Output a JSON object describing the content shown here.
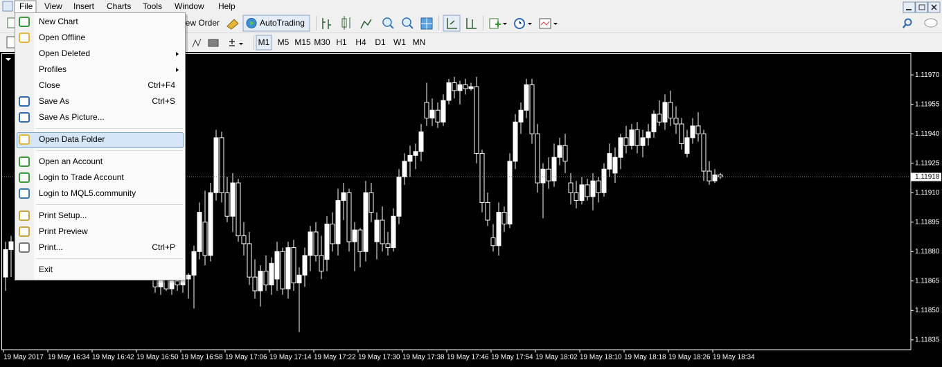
{
  "menu_bar": [
    "File",
    "View",
    "Insert",
    "Charts",
    "Tools",
    "Window",
    "Help"
  ],
  "toolbar": {
    "new_order": "New Order",
    "auto_trading": "AutoTrading",
    "timeframes": [
      "M1",
      "M5",
      "M15",
      "M30",
      "H1",
      "H4",
      "D1",
      "W1",
      "MN"
    ]
  },
  "file_menu": {
    "groups": [
      [
        {
          "label": "New Chart"
        },
        {
          "label": "Open Offline"
        },
        {
          "label": "Open Deleted",
          "submenu": true
        },
        {
          "label": "Profiles",
          "submenu": true
        },
        {
          "label": "Close",
          "shortcut": "Ctrl+F4"
        },
        {
          "label": "Save As",
          "shortcut": "Ctrl+S"
        },
        {
          "label": "Save As Picture..."
        }
      ],
      [
        {
          "label": "Open Data Folder",
          "highlighted": true
        }
      ],
      [
        {
          "label": "Open an Account"
        },
        {
          "label": "Login to Trade Account"
        },
        {
          "label": "Login to MQL5.community"
        }
      ],
      [
        {
          "label": "Print Setup..."
        },
        {
          "label": "Print Preview"
        },
        {
          "label": "Print...",
          "shortcut": "Ctrl+P"
        }
      ],
      [
        {
          "label": "Exit"
        }
      ]
    ]
  },
  "chart_data": {
    "type": "candlestick",
    "x": [
      "19 May 2017",
      null,
      null,
      null,
      null,
      null,
      null,
      null,
      "19 May 16:34",
      null,
      null,
      null,
      null,
      null,
      null,
      null,
      "19 May 16:42",
      null,
      null,
      null,
      null,
      null,
      null,
      null,
      "19 May 16:50",
      null,
      null,
      null,
      null,
      null,
      null,
      null,
      "19 May 16:58",
      null,
      null,
      null,
      null,
      null,
      null,
      null,
      "19 May 17:06",
      null,
      null,
      null,
      null,
      null,
      null,
      null,
      "19 May 17:14",
      null,
      null,
      null,
      null,
      null,
      null,
      null,
      "19 May 17:22",
      null,
      null,
      null,
      null,
      null,
      null,
      null,
      "19 May 17:30",
      null,
      null,
      null,
      null,
      null,
      null,
      null,
      "19 May 17:38",
      null,
      null,
      null,
      null,
      null,
      null,
      null,
      "19 May 17:46",
      null,
      null,
      null,
      null,
      null,
      null,
      null,
      "19 May 17:54",
      null,
      null,
      null,
      null,
      null,
      null,
      null,
      "19 May 18:02",
      null,
      null,
      null,
      null,
      null,
      null,
      null,
      "19 May 18:10",
      null,
      null,
      null,
      null,
      null,
      null,
      null,
      "19 May 18:18",
      null,
      null,
      null,
      null,
      null,
      null,
      null,
      "19 May 18:26",
      null,
      null,
      null,
      null,
      null,
      null,
      null,
      "19 May 18:34",
      null
    ],
    "open": [
      1.11867,
      1.11881,
      null,
      null,
      null,
      null,
      null,
      null,
      null,
      null,
      null,
      null,
      null,
      null,
      null,
      null,
      null,
      null,
      null,
      null,
      null,
      null,
      null,
      null,
      null,
      null,
      null,
      1.11866,
      1.11862,
      1.11866,
      1.11861,
      1.11865,
      1.11863,
      1.11866,
      1.11868,
      1.1188,
      1.11895,
      1.11878,
      1.1191,
      1.11938,
      1.1191,
      1.11898,
      1.11915,
      1.11888,
      1.11884,
      1.11867,
      1.1186,
      1.1187,
      1.11863,
      1.11866,
      1.1188,
      1.11861,
      1.11882,
      1.11864,
      1.11868,
      1.11878,
      1.1189,
      1.11878,
      1.11876,
      1.11894,
      1.11884,
      1.11906,
      1.1191,
      1.11885,
      1.11891,
      1.1188,
      1.1191,
      1.11885,
      1.11896,
      1.11884,
      1.11882,
      1.11898,
      1.11918,
      1.11926,
      1.11929,
      1.11931,
      1.11956,
      1.11948,
      1.11952,
      1.11946,
      1.11957,
      1.11966,
      1.11962,
      1.11965,
      1.11963,
      1.11964,
      1.1193,
      1.11905,
      1.11887,
      1.11883,
      1.119,
      1.11894,
      1.11926,
      1.11946,
      1.11952,
      1.11965,
      1.1194,
      1.11915,
      1.11922,
      1.11916,
      1.11928,
      1.11934,
      1.11915,
      1.1191,
      1.11906,
      1.11914,
      1.11908,
      1.11916,
      1.1191,
      1.11922,
      1.1192,
      1.11928,
      1.11938,
      1.11934,
      1.11942,
      1.11934,
      1.11938,
      1.11941,
      1.1195,
      1.11946,
      1.11956,
      1.11948,
      1.11945,
      1.1193,
      1.11938,
      1.11944,
      1.1194,
      1.11921,
      1.11916,
      1.11919
    ],
    "high": [
      1.11885,
      1.11888,
      null,
      null,
      null,
      null,
      null,
      null,
      null,
      null,
      null,
      null,
      null,
      null,
      null,
      null,
      null,
      null,
      null,
      null,
      null,
      null,
      null,
      null,
      null,
      null,
      null,
      1.1187,
      1.11868,
      1.11869,
      1.11866,
      1.11869,
      1.11868,
      1.11869,
      1.11883,
      1.11905,
      1.11911,
      1.11915,
      1.11942,
      1.11941,
      1.11918,
      1.1192,
      1.11917,
      1.11895,
      1.1189,
      1.11876,
      1.11873,
      1.11878,
      1.11877,
      1.11885,
      1.11882,
      1.11885,
      1.11886,
      1.11872,
      1.11882,
      1.11893,
      1.11895,
      1.11888,
      1.11898,
      1.119,
      1.11912,
      1.11915,
      1.11912,
      1.11895,
      1.11892,
      1.11916,
      1.11915,
      1.119,
      1.11903,
      1.1189,
      1.11902,
      1.11922,
      1.1193,
      1.11934,
      1.11935,
      1.11945,
      1.11966,
      1.11958,
      1.11956,
      1.1196,
      1.11968,
      1.11969,
      1.11967,
      1.11968,
      1.11966,
      1.11969,
      1.11932,
      1.1191,
      1.11894,
      1.11905,
      1.11903,
      1.1193,
      1.1195,
      1.11956,
      1.11968,
      1.11968,
      1.11945,
      1.11925,
      1.11928,
      1.11935,
      1.11938,
      1.1194,
      1.1192,
      1.11916,
      1.11918,
      1.11917,
      1.1192,
      1.11918,
      1.11925,
      1.11935,
      1.11933,
      1.1194,
      1.11944,
      1.11945,
      1.11946,
      1.11942,
      1.11945,
      1.11952,
      1.11957,
      1.1196,
      1.11962,
      1.11954,
      1.11948,
      1.11942,
      1.11948,
      1.11951,
      1.11942,
      1.11926,
      1.11922,
      1.1192
    ],
    "low": [
      1.1186,
      1.11867,
      null,
      null,
      null,
      null,
      null,
      null,
      null,
      null,
      null,
      null,
      null,
      null,
      null,
      null,
      null,
      null,
      null,
      null,
      null,
      null,
      null,
      null,
      null,
      null,
      null,
      1.11859,
      1.11858,
      1.1186,
      1.11858,
      1.1186,
      1.11859,
      1.11856,
      1.11851,
      1.11876,
      1.11873,
      1.11875,
      1.11906,
      1.11905,
      1.11895,
      1.1189,
      1.11885,
      1.11878,
      1.11863,
      1.11856,
      1.11852,
      1.1186,
      1.11858,
      1.1186,
      1.11858,
      1.11856,
      1.1186,
      1.11839,
      1.11862,
      1.1187,
      1.11875,
      1.11866,
      1.1187,
      1.1188,
      1.11878,
      1.11896,
      1.1188,
      1.1187,
      1.11872,
      1.11875,
      1.11895,
      1.11876,
      1.1188,
      1.11878,
      1.1188,
      1.11894,
      1.11914,
      1.11918,
      1.11922,
      1.11926,
      1.11944,
      1.11944,
      1.11943,
      1.11944,
      1.11955,
      1.11958,
      1.11955,
      1.1196,
      1.11962,
      1.11925,
      1.119,
      1.11893,
      1.1188,
      1.11878,
      1.1189,
      1.11892,
      1.11922,
      1.1194,
      1.11948,
      1.11935,
      1.1191,
      1.11897,
      1.11912,
      1.11913,
      1.11924,
      1.1192,
      1.11904,
      1.11902,
      1.11904,
      1.11906,
      1.11901,
      1.11905,
      1.11908,
      1.11918,
      1.11915,
      1.11922,
      1.1193,
      1.11932,
      1.1193,
      1.11928,
      1.11934,
      1.11938,
      1.11944,
      1.11942,
      1.11944,
      1.1194,
      1.11932,
      1.11928,
      1.11935,
      1.11936,
      1.11916,
      1.11914,
      1.11915,
      1.11917
    ],
    "close": [
      1.11881,
      1.11885,
      null,
      null,
      null,
      null,
      null,
      null,
      null,
      null,
      null,
      null,
      null,
      null,
      null,
      null,
      null,
      null,
      null,
      null,
      null,
      null,
      null,
      null,
      null,
      null,
      null,
      1.11862,
      1.11866,
      1.11861,
      1.11865,
      1.11863,
      1.11866,
      1.11868,
      1.1188,
      1.119,
      1.11878,
      1.1191,
      1.11938,
      1.1191,
      1.11898,
      1.11915,
      1.11888,
      1.11884,
      1.11867,
      1.1186,
      1.1187,
      1.11863,
      1.11874,
      1.1188,
      1.11861,
      1.11882,
      1.11864,
      1.11868,
      1.11878,
      1.1189,
      1.11878,
      1.1187,
      1.11894,
      1.11884,
      1.11906,
      1.1191,
      1.11885,
      1.11891,
      1.1188,
      1.1191,
      1.119,
      1.11896,
      1.11884,
      1.11882,
      1.11898,
      1.11918,
      1.11926,
      1.11929,
      1.11931,
      1.11941,
      1.11948,
      1.11952,
      1.11946,
      1.11957,
      1.11966,
      1.11962,
      1.11965,
      1.11963,
      1.11964,
      1.1193,
      1.11905,
      1.11896,
      1.11883,
      1.119,
      1.11894,
      1.11926,
      1.11946,
      1.11952,
      1.11965,
      1.1194,
      1.11915,
      1.11922,
      1.11916,
      1.11928,
      1.11934,
      1.11926,
      1.1191,
      1.11906,
      1.11914,
      1.11908,
      1.11916,
      1.1191,
      1.11922,
      1.1193,
      1.11928,
      1.11938,
      1.11934,
      1.11942,
      1.11934,
      1.11938,
      1.11941,
      1.1195,
      1.11946,
      1.11956,
      1.11948,
      1.11945,
      1.11935,
      1.11938,
      1.11944,
      1.1194,
      1.11921,
      1.11916,
      1.11919,
      1.11918
    ],
    "bid": 1.11918,
    "ylim": [
      1.1183,
      1.11981
    ],
    "yticks": [
      {
        "value": 1.1197,
        "label": "1.11970"
      },
      1.11955,
      {
        "value": 1.1194,
        "label": "1.11940"
      },
      1.11925,
      {
        "value": 1.1191,
        "label": "1.11910"
      },
      1.11895,
      {
        "value": 1.1188,
        "label": "1.11880"
      },
      1.11865,
      {
        "value": 1.1185,
        "label": "1.11850"
      },
      1.11835
    ],
    "grid": false,
    "background": "#000000",
    "bull_color": "#ffffff",
    "bear_color": "#000000",
    "wick_color": "#ffffff"
  }
}
